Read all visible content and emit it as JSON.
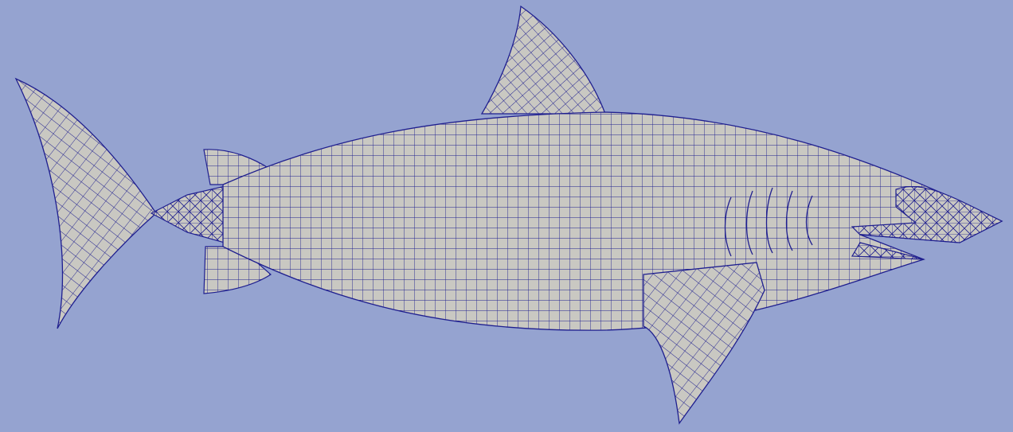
{
  "viewport": {
    "background_color": "#95a3d0"
  },
  "mesh": {
    "fill_color": "#c9c8c2",
    "edge_color": "#1f1f8f",
    "regions": [
      "body",
      "tail-fin",
      "dorsal-fin",
      "pectoral-fin",
      "upper-caudal-keel",
      "lower-caudal-keel",
      "snout",
      "lower-jaw",
      "gills"
    ]
  }
}
